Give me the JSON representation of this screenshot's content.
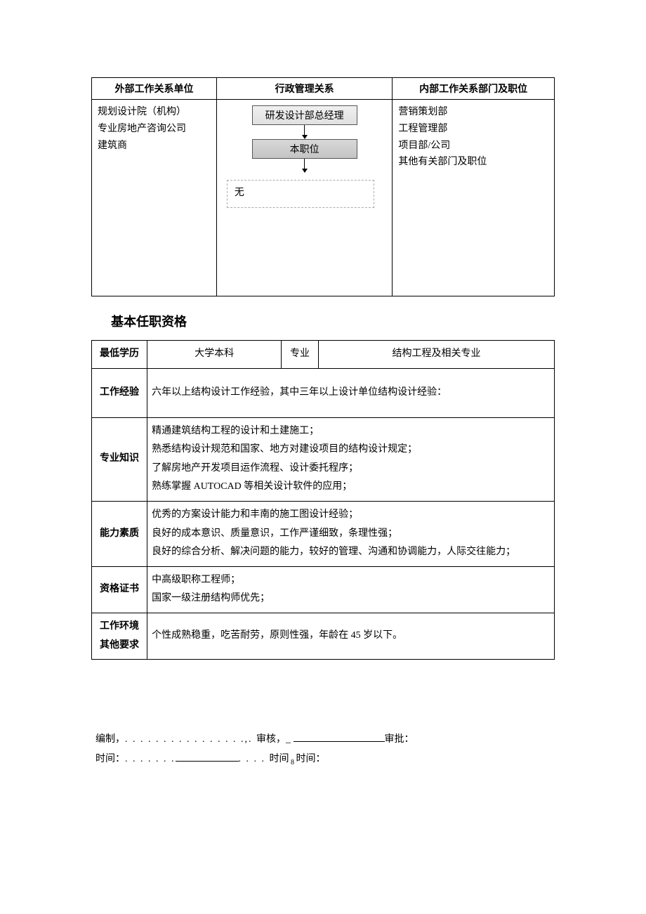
{
  "relTable": {
    "headers": {
      "ext": "外部工作关系单位",
      "admin": "行政管理关系",
      "int": "内部工作关系部门及职位"
    },
    "external": {
      "l1": "规划设计院（机构）",
      "l2": "专业房地产咨询公司",
      "l3": "建筑商"
    },
    "flow": {
      "manager": "研发设计部总经理",
      "self": "本职位",
      "none": "无"
    },
    "internal": {
      "l1": "营销策划部",
      "l2": "工程管理部",
      "l3": "项目部/公司",
      "l4": "其他有关部门及职位"
    }
  },
  "sectionTitle": "基本任职资格",
  "qual": {
    "degreeLbl": "最低学历",
    "degreeVal": "大学本科",
    "majorLbl": "专业",
    "majorVal": "结构工程及相关专业",
    "expLbl": "工作经验",
    "expVal": "六年以上结构设计工作经验，其中三年以上设计单位结构设计经验：",
    "knowLbl": "专业知识",
    "know1": "精通建筑结构工程的设计和土建施工；",
    "know2": "熟悉结构设计规范和国家、地方对建设项目的结构设计规定；",
    "know3": "了解房地产开发项目运作流程、设计委托程序；",
    "know4": "熟练掌握 AUTOCAD 等相关设计软件的应用；",
    "capLbl": "能力素质",
    "cap1": "优秀的方案设计能力和丰南的施工图设计经验；",
    "cap2": "良好的成本意识、质量意识，工作严谨细致，条理性强；",
    "cap3": "良好的综合分析、解决问题的能力，较好的管理、沟通和协调能力，人际交往能力；",
    "certLbl": "资格证书",
    "cert1": "中高级职称工程师；",
    "cert2": "国家一级注册结构师优先；",
    "envLbl1": "工作环境",
    "envLbl2": "其他要求",
    "envVal": "个性成熟稳重，吃苦耐劳，原则性强，年龄在 45 岁以下。"
  },
  "sign": {
    "line1a": "编制，",
    "line1b": "审核，_ ",
    "line1c": "审批：",
    "line2a": "时间：",
    "line2b": "时间",
    "line2c": "时间："
  }
}
